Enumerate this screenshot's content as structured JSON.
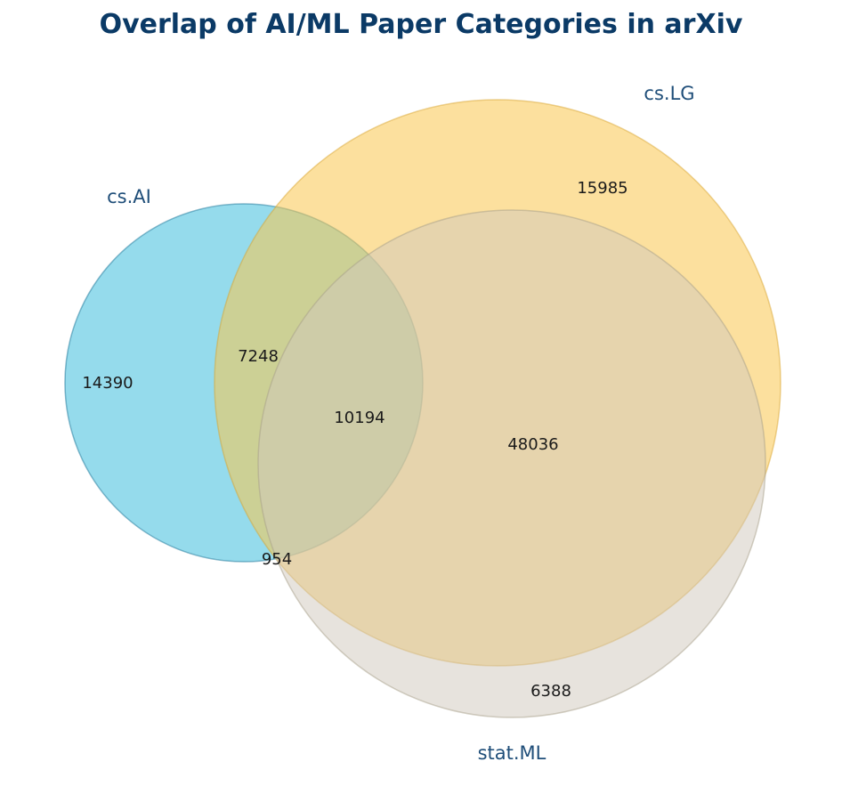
{
  "chart_data": {
    "type": "venn",
    "title": "Overlap of AI/ML Paper Categories in arXiv",
    "sets": [
      {
        "name": "cs.AI",
        "color": "#4fc3e0"
      },
      {
        "name": "cs.LG",
        "color": "#f9c74f"
      },
      {
        "name": "stat.ML",
        "color": "#cfc8bc"
      }
    ],
    "regions": [
      {
        "sets": [
          "cs.AI"
        ],
        "value": 14390
      },
      {
        "sets": [
          "cs.LG"
        ],
        "value": 15985
      },
      {
        "sets": [
          "stat.ML"
        ],
        "value": 6388
      },
      {
        "sets": [
          "cs.AI",
          "cs.LG"
        ],
        "value": 7248
      },
      {
        "sets": [
          "cs.AI",
          "stat.ML"
        ],
        "value": 954
      },
      {
        "sets": [
          "cs.LG",
          "stat.ML"
        ],
        "value": 48036
      },
      {
        "sets": [
          "cs.AI",
          "cs.LG",
          "stat.ML"
        ],
        "value": 10194
      }
    ]
  }
}
